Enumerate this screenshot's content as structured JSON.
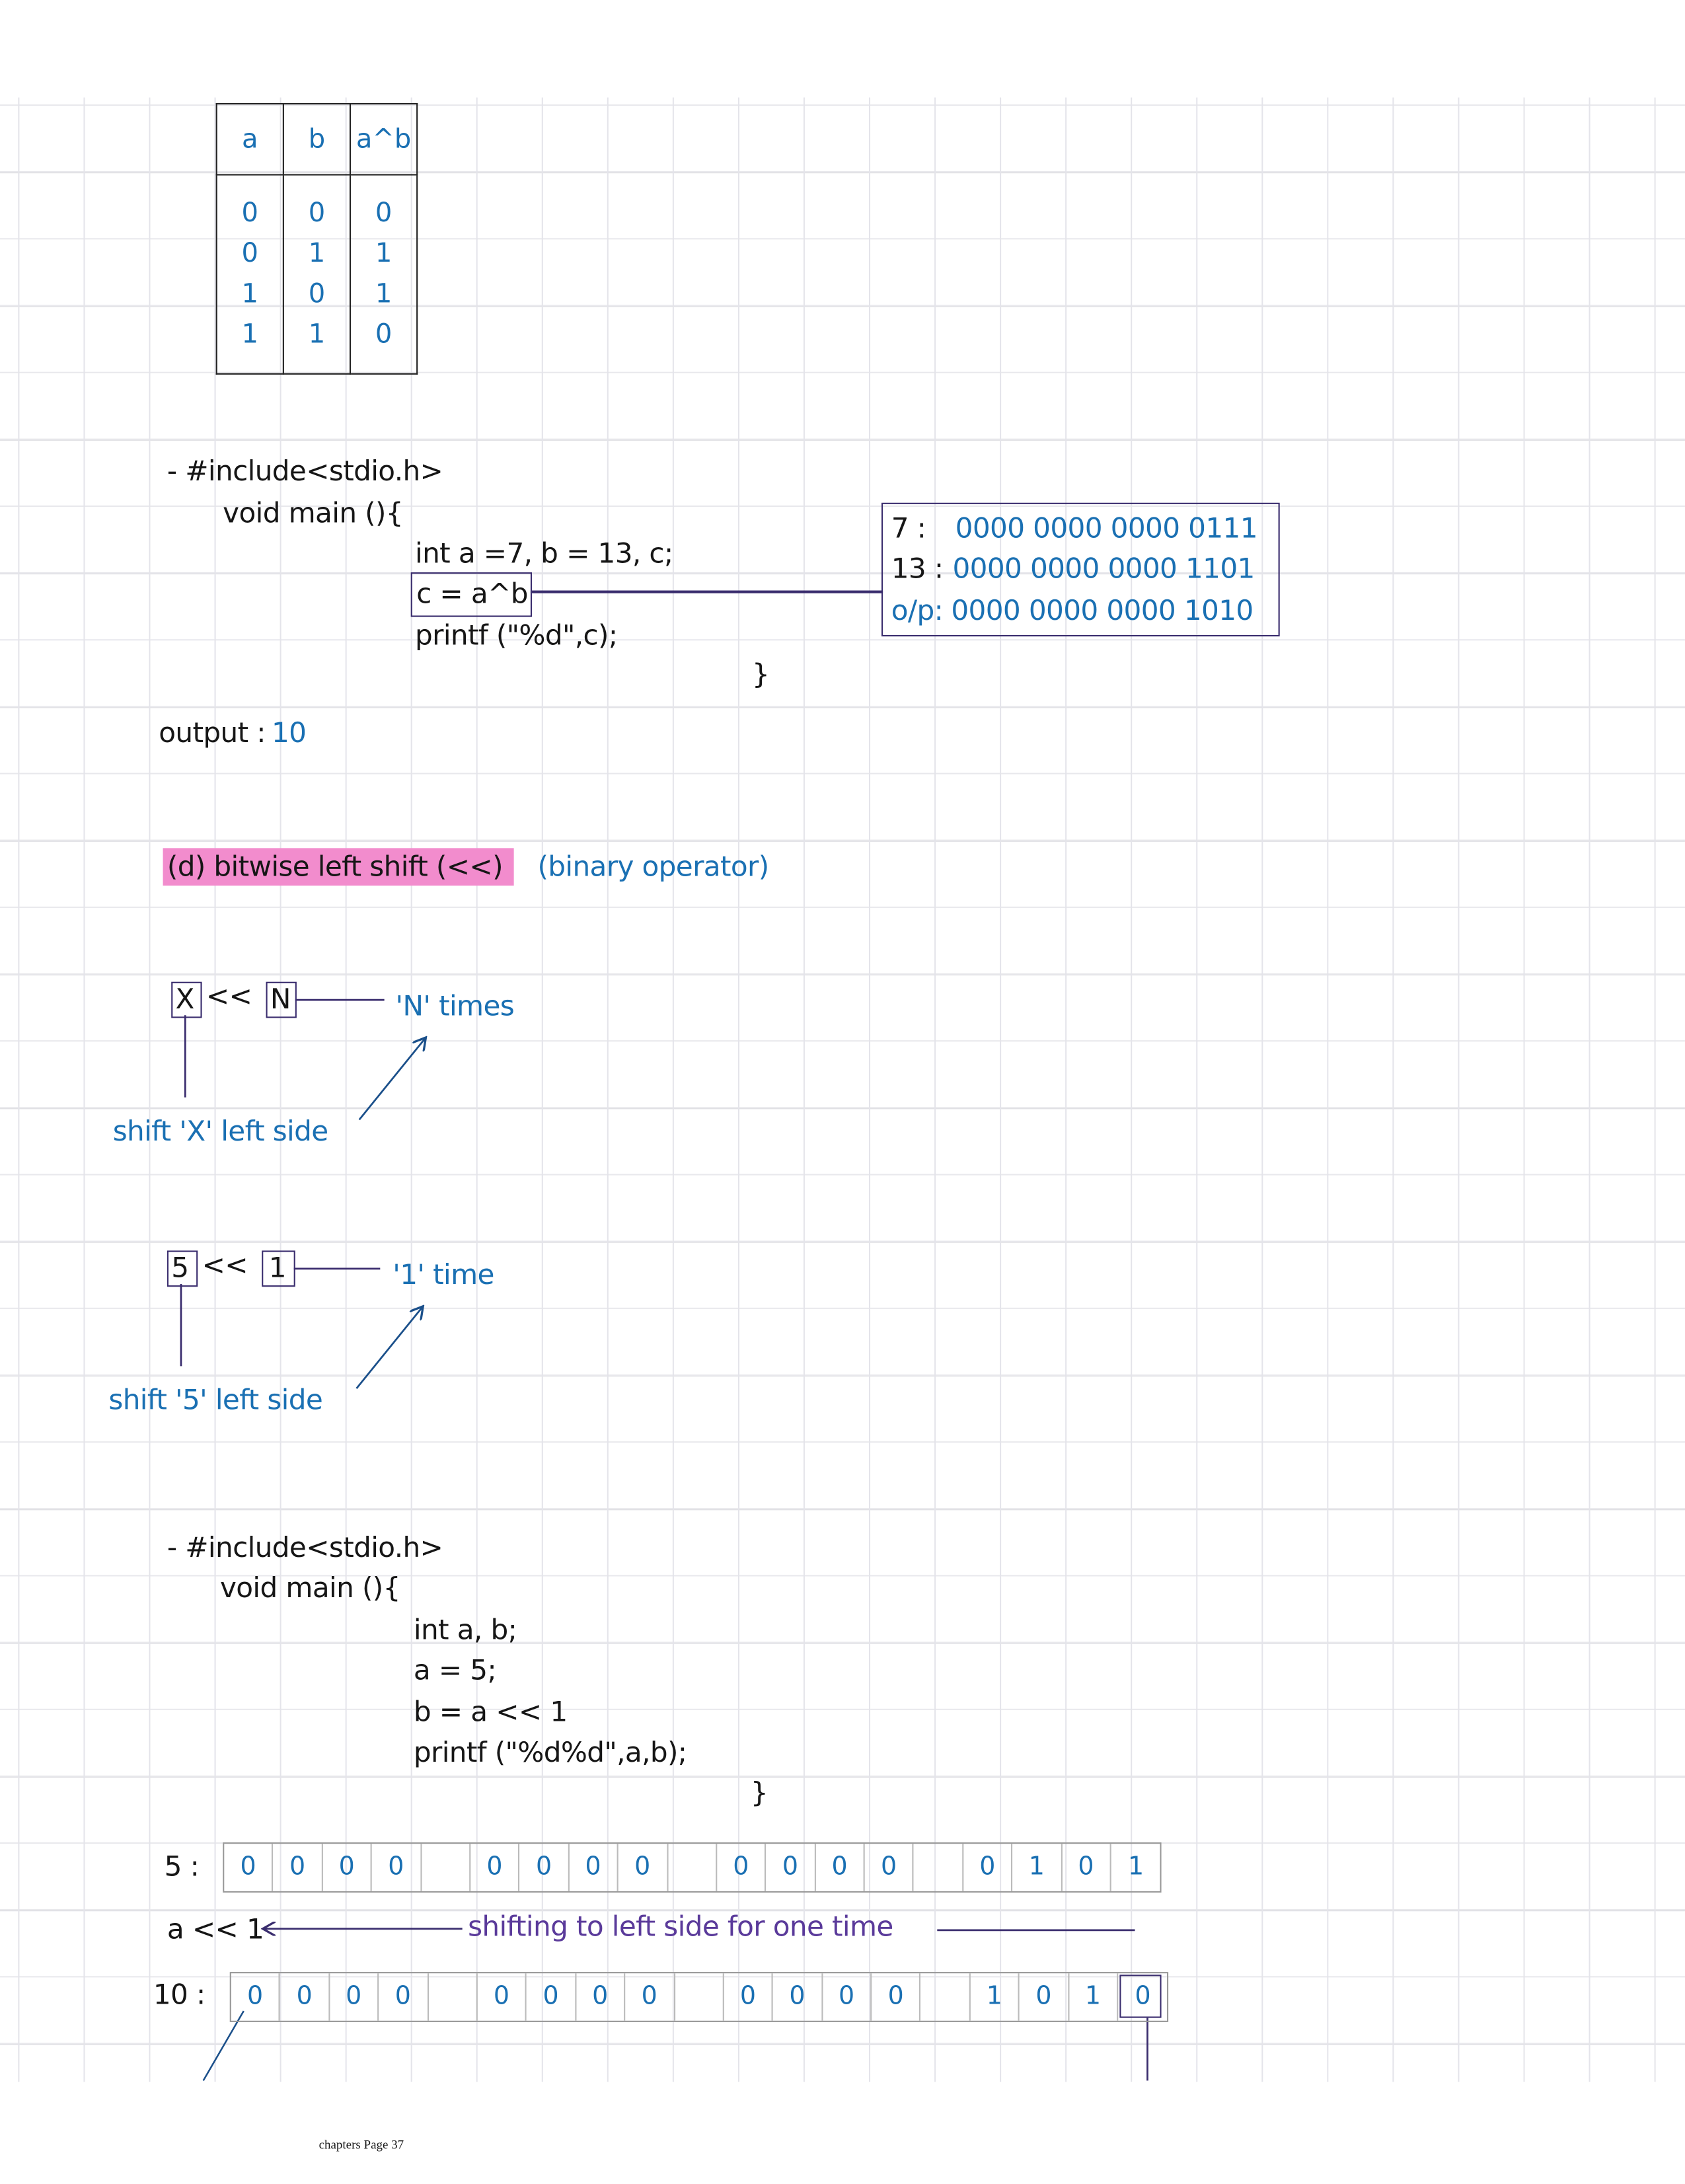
{
  "xor_table": {
    "headers": [
      "a",
      "b",
      "a^b"
    ],
    "columns": [
      [
        "0",
        "0",
        "1",
        "1"
      ],
      [
        "0",
        "1",
        "0",
        "1"
      ],
      [
        "0",
        "1",
        "1",
        "0"
      ]
    ]
  },
  "program1": {
    "lines": [
      "- #include<stdio.h>",
      "void main (){",
      "int a =7, b = 13, c;",
      "c = a^b",
      "printf (\"%d\",c);",
      "}"
    ],
    "binary_box": [
      {
        "label": "7 :",
        "value": "0000 0000 0000 0111"
      },
      {
        "label": "13 :",
        "value": "0000 0000 0000 1101"
      },
      {
        "label": "o/p:",
        "value": "0000 0000 0000 1010"
      }
    ],
    "output_label": "output :",
    "output_value": "10"
  },
  "section_d": {
    "title": "(d) bitwise left shift (<<)",
    "note": "(binary operator)",
    "highlight_color": "#f28ccd"
  },
  "diagram1": {
    "left": "X",
    "op": "<<",
    "right": "N",
    "right_note": "'N' times",
    "left_note": "shift 'X' left side"
  },
  "diagram2": {
    "left": "5",
    "op": "<<",
    "right": "1",
    "right_note": "'1' time",
    "left_note": "shift '5' left side"
  },
  "program2": {
    "lines": [
      "- #include<stdio.h>",
      "void main (){",
      "int a, b;",
      "a = 5;",
      "b = a << 1",
      "printf (\"%d%d\",a,b);",
      "}"
    ]
  },
  "shift_demo": {
    "row1_label": "5 :",
    "row1_bits": [
      "0",
      "0",
      "0",
      "0",
      "",
      "0",
      "0",
      "0",
      "0",
      "",
      "0",
      "0",
      "0",
      "0",
      "",
      "0",
      "1",
      "0",
      "1"
    ],
    "shift_label": "a << 1",
    "shift_note": "shifting to left side for one time",
    "row2_label": "10 :",
    "row2_bits": [
      "0",
      "0",
      "0",
      "0",
      "",
      "0",
      "0",
      "0",
      "0",
      "",
      "0",
      "0",
      "0",
      "0",
      "",
      "1",
      "0",
      "1",
      "0"
    ]
  },
  "footer": "chapters Page 37",
  "colors": {
    "ink": "#161616",
    "blue": "#1a70b3",
    "purple": "#5a3a9a",
    "line": "#3a2d6e"
  }
}
